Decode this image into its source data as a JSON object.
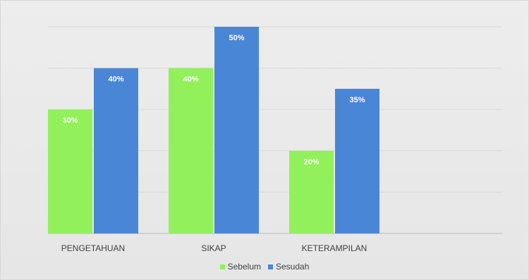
{
  "chart_data": {
    "type": "bar",
    "categories": [
      "PENGETAHUAN",
      "SIKAP",
      "KETERAMPILAN"
    ],
    "series": [
      {
        "name": "Sebelum",
        "color": "#92F05A",
        "values": [
          30,
          40,
          20
        ],
        "labels": [
          "30%",
          "40%",
          "20%"
        ]
      },
      {
        "name": "Sesudah",
        "color": "#4A86D6",
        "values": [
          40,
          50,
          35
        ],
        "labels": [
          "40%",
          "50%",
          "35%"
        ]
      }
    ],
    "ylim": [
      0,
      50
    ],
    "grid": true,
    "legend_position": "bottom"
  }
}
